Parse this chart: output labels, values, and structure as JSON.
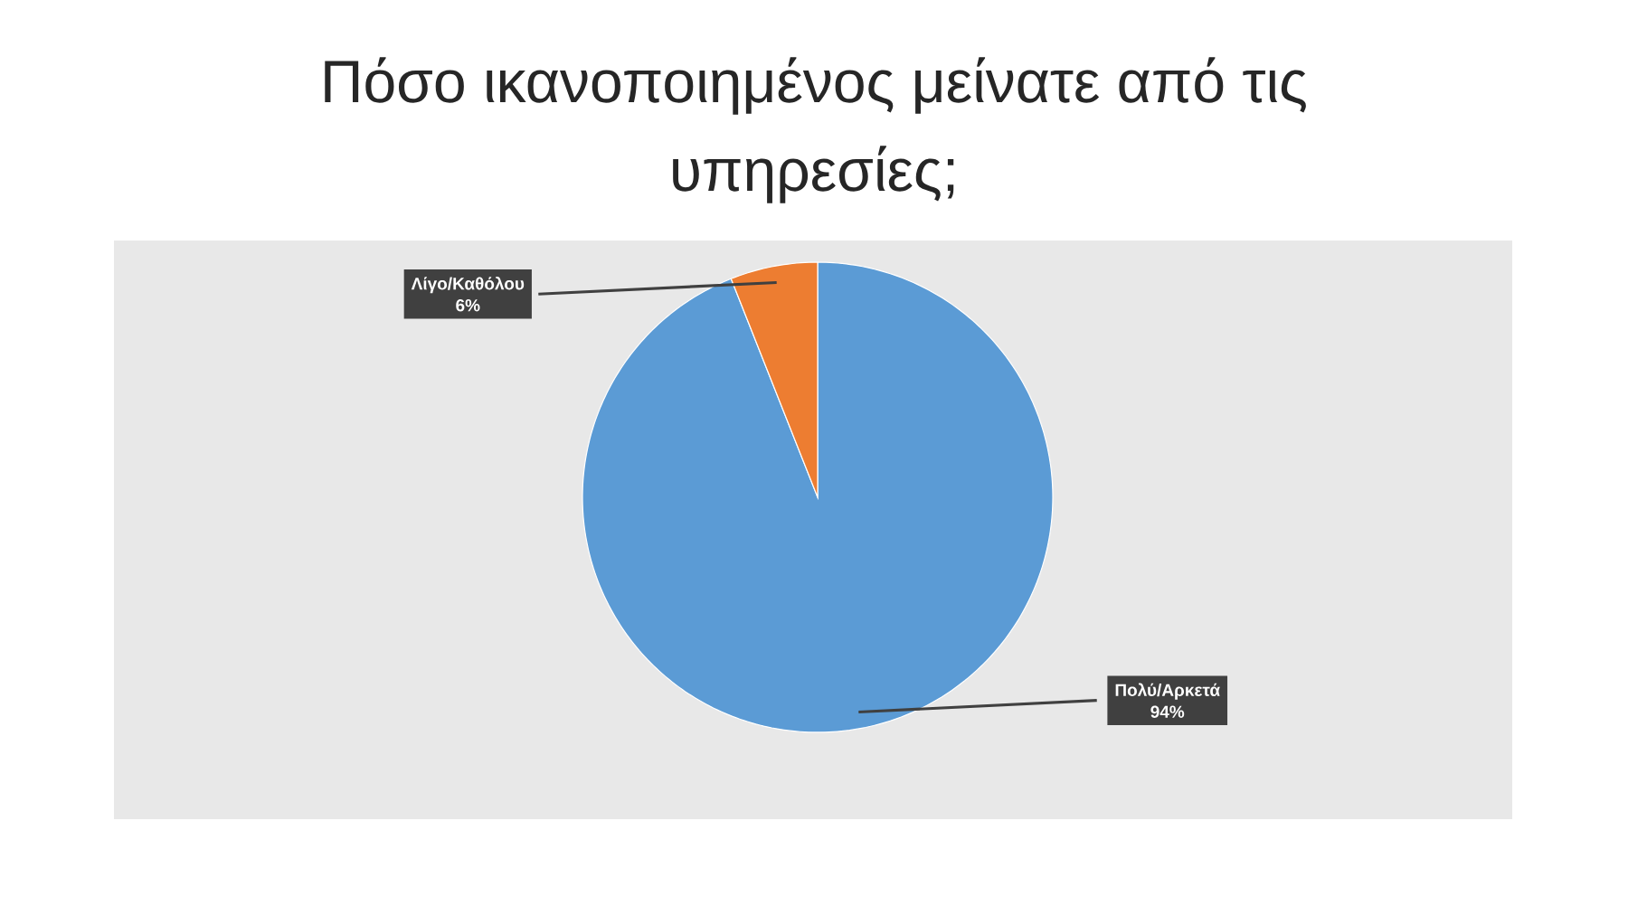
{
  "chart_data": {
    "type": "pie",
    "title": "Πόσο ικανοποιημένος μείνατε από τις υπηρεσίες;",
    "categories": [
      "Πολύ/Αρκετά",
      "Λίγο/Καθόλου"
    ],
    "values": [
      94,
      6
    ],
    "colors": [
      "#5b9bd5",
      "#ed7d31"
    ],
    "value_labels": [
      "94%",
      "6%"
    ]
  }
}
